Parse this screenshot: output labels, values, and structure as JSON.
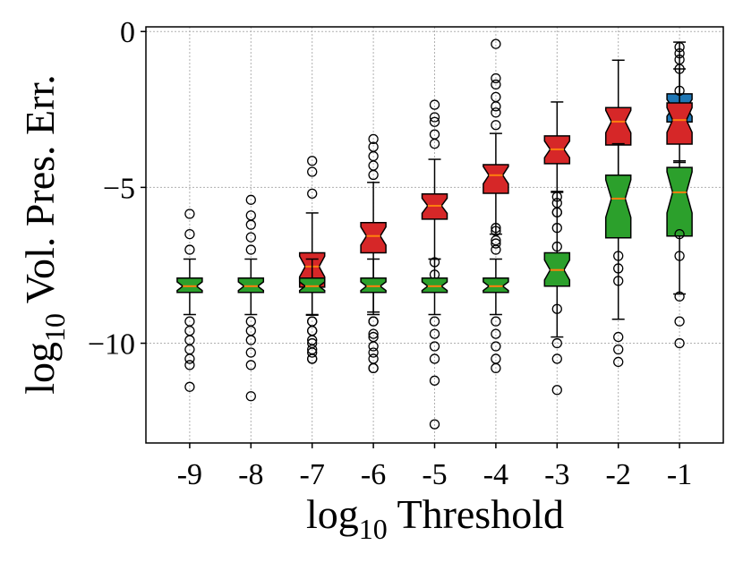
{
  "chart_data": {
    "type": "box",
    "ylabel_parts": [
      "log",
      "10",
      " Vol. Pres. Err."
    ],
    "xlabel_parts": [
      "log",
      "10",
      " Threshold"
    ],
    "categories": [
      "-9",
      "-8",
      "-7",
      "-6",
      "-5",
      "-4",
      "-3",
      "-2",
      "-1"
    ],
    "ylim": [
      -13.2,
      0.15
    ],
    "yticks": [
      0,
      {
        "value": -5,
        "label": "−5"
      },
      {
        "value": -10,
        "label": "−10"
      }
    ],
    "grid": true,
    "notch": true,
    "median_color": "#ff7f0e",
    "series": [
      {
        "color": "#1f77b4",
        "boxes": [
          null,
          null,
          null,
          null,
          null,
          null,
          null,
          null,
          {
            "whislo": -3.6,
            "q1": -2.9,
            "med": -2.45,
            "q3": -2.0,
            "whishi": -1.2,
            "fliers": []
          }
        ]
      },
      {
        "color": "#d62728",
        "boxes": [
          null,
          null,
          {
            "whislo": -9.1,
            "q1": -8.2,
            "med": -7.54,
            "q3": -7.1,
            "whishi": -5.82,
            "fliers": [
              -5.2,
              -4.5,
              -4.15,
              -9.3,
              -9.6,
              -10.0,
              -10.3,
              -10.5
            ]
          },
          {
            "whislo": -9.0,
            "q1": -7.1,
            "med": -6.56,
            "q3": -6.13,
            "whishi": -4.84,
            "fliers": [
              -4.6,
              -4.3,
              -4.0,
              -3.7,
              -3.45,
              -9.3,
              -9.8,
              -10.3,
              -10.8
            ]
          },
          {
            "whislo": -7.3,
            "q1": -6.02,
            "med": -5.59,
            "q3": -5.21,
            "whishi": -4.1,
            "fliers": [
              -3.6,
              -3.3,
              -2.9,
              -2.75,
              -2.35,
              -7.4,
              -7.8
            ]
          },
          {
            "whislo": -6.5,
            "q1": -5.19,
            "med": -4.61,
            "q3": -4.27,
            "whishi": -3.27,
            "fliers": [
              -3.0,
              -2.6,
              -2.4,
              -2.1,
              -1.7,
              -1.5,
              -0.4,
              -6.8,
              -6.3
            ]
          },
          {
            "whislo": -5.13,
            "q1": -4.24,
            "med": -3.78,
            "q3": -3.35,
            "whishi": -2.26,
            "fliers": [
              -5.5,
              -5.8
            ]
          },
          {
            "whislo": -4.7,
            "q1": -3.64,
            "med": -2.89,
            "q3": -2.44,
            "whishi": -0.92,
            "fliers": []
          },
          {
            "whislo": -4.2,
            "q1": -3.61,
            "med": -2.84,
            "q3": -2.29,
            "whishi": -0.34,
            "fliers": [
              -0.5,
              -0.7,
              -0.9,
              -1.2,
              -1.9
            ]
          }
        ]
      },
      {
        "color": "#2ca02c",
        "boxes": [
          {
            "whislo": -9.08,
            "q1": -8.37,
            "med": -8.17,
            "q3": -7.91,
            "whishi": -7.3,
            "fliers": [
              -7.0,
              -6.5,
              -5.85,
              -9.3,
              -9.6,
              -9.9,
              -10.2,
              -10.5,
              -10.7,
              -11.4
            ]
          },
          {
            "whislo": -9.08,
            "q1": -8.37,
            "med": -8.17,
            "q3": -7.91,
            "whishi": -7.3,
            "fliers": [
              -7.0,
              -6.6,
              -6.2,
              -5.9,
              -5.4,
              -9.3,
              -9.6,
              -9.9,
              -10.3,
              -10.7,
              -11.7
            ]
          },
          {
            "whislo": -9.08,
            "q1": -8.37,
            "med": -8.17,
            "q3": -7.91,
            "whishi": -7.3,
            "fliers": [
              -9.3,
              -9.6,
              -9.9,
              -10.2,
              -10.5
            ]
          },
          {
            "whislo": -9.08,
            "q1": -8.37,
            "med": -8.17,
            "q3": -7.91,
            "whishi": -7.3,
            "fliers": [
              -9.3,
              -9.7,
              -10.1,
              -10.5,
              -10.8
            ]
          },
          {
            "whislo": -9.08,
            "q1": -8.37,
            "med": -8.17,
            "q3": -7.91,
            "whishi": -7.3,
            "fliers": [
              -9.3,
              -9.7,
              -10.1,
              -10.5,
              -11.2,
              -12.6
            ]
          },
          {
            "whislo": -9.08,
            "q1": -8.37,
            "med": -8.17,
            "q3": -7.91,
            "whishi": -7.3,
            "fliers": [
              -7.0,
              -6.7,
              -6.4,
              -9.3,
              -9.7,
              -10.1,
              -10.5,
              -10.8
            ]
          },
          {
            "whislo": -9.8,
            "q1": -8.17,
            "med": -7.65,
            "q3": -7.1,
            "whishi": -5.16,
            "fliers": [
              -5.3,
              -5.8,
              -6.3,
              -6.9,
              -8.9,
              -10.0,
              -10.5,
              -11.5
            ]
          },
          {
            "whislo": -9.23,
            "q1": -6.62,
            "med": -5.36,
            "q3": -4.61,
            "whishi": -3.6,
            "fliers": [
              -7.2,
              -7.6,
              -8.0,
              -9.8,
              -10.2,
              -10.6
            ]
          },
          {
            "whislo": -8.42,
            "q1": -6.56,
            "med": -5.16,
            "q3": -4.36,
            "whishi": -4.15,
            "fliers": [
              -6.5,
              -7.2,
              -8.5,
              -9.3,
              -10.0
            ]
          }
        ]
      }
    ]
  }
}
